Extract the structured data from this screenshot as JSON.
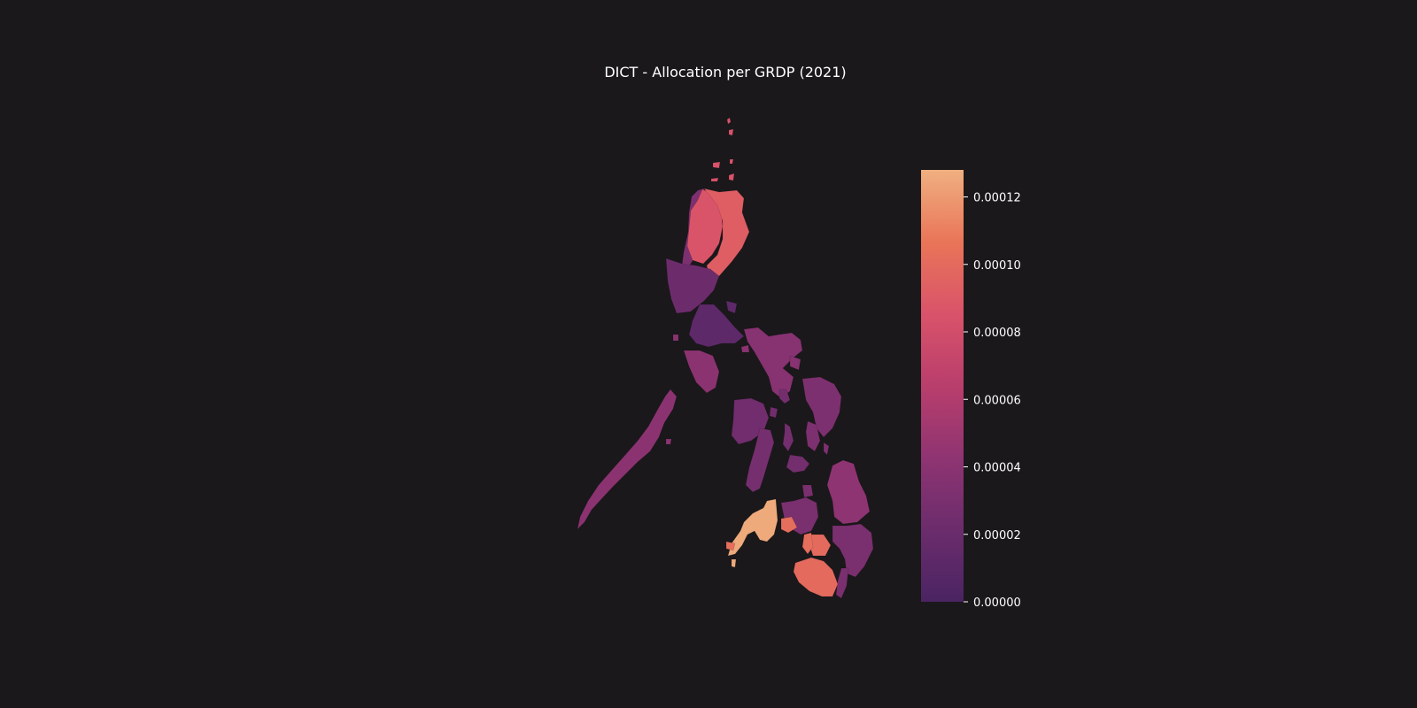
{
  "title": "DICT - Allocation per GRDP (2021)",
  "colorbar": {
    "min": 0,
    "max": 0.000128,
    "ticks": [
      "0.00000",
      "0.00002",
      "0.00004",
      "0.00006",
      "0.00008",
      "0.00010",
      "0.00012"
    ],
    "tick_values": [
      0,
      2e-05,
      4e-05,
      6e-05,
      8e-05,
      0.0001,
      0.00012
    ],
    "colormap": "flare",
    "colors": [
      "#4b2462",
      "#6b2c6c",
      "#8f3472",
      "#b93e6c",
      "#d9536a",
      "#e97558",
      "#f0b080"
    ]
  },
  "chart_data": {
    "type": "choropleth",
    "title": "DICT - Allocation per GRDP (2021)",
    "legend": "right",
    "value_range": [
      0,
      0.000128
    ],
    "regions": [
      {
        "id": "batanes-islands",
        "value": 8.5e-05
      },
      {
        "id": "ilocos",
        "value": 3.2e-05
      },
      {
        "id": "cordillera",
        "value": 8.6e-05
      },
      {
        "id": "cagayan-valley",
        "value": 9.2e-05
      },
      {
        "id": "central-luzon",
        "value": 2.2e-05
      },
      {
        "id": "calabarzon",
        "value": 1.2e-05
      },
      {
        "id": "mimaropa-mindoro",
        "value": 4e-05
      },
      {
        "id": "palawan",
        "value": 4e-05
      },
      {
        "id": "bicol",
        "value": 3.8e-05
      },
      {
        "id": "western-visayas",
        "value": 2.5e-05
      },
      {
        "id": "negros",
        "value": 2.8e-05
      },
      {
        "id": "central-visayas",
        "value": 2.6e-05
      },
      {
        "id": "eastern-visayas",
        "value": 3.2e-05
      },
      {
        "id": "zamboanga-peninsula",
        "value": 0.000126
      },
      {
        "id": "northern-mindanao",
        "value": 3e-05
      },
      {
        "id": "caraga",
        "value": 4.2e-05
      },
      {
        "id": "davao",
        "value": 3e-05
      },
      {
        "id": "soccsksargen",
        "value": 0.0001
      },
      {
        "id": "barmm",
        "value": 0.000102
      }
    ]
  }
}
